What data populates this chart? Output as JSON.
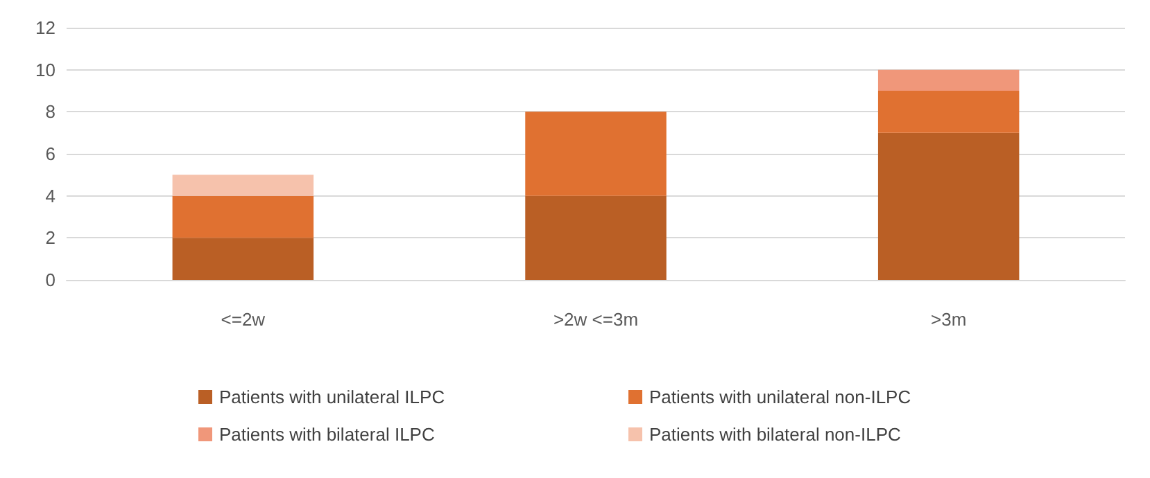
{
  "chart_data": {
    "type": "bar",
    "stacked": true,
    "categories": [
      "<=2w",
      ">2w <=3m",
      ">3m"
    ],
    "series": [
      {
        "name": "Patients with unilateral ILPC",
        "color": "#ba5f25",
        "values": [
          2,
          4,
          7
        ]
      },
      {
        "name": "Patients with unilateral non-ILPC",
        "color": "#e07131",
        "values": [
          2,
          4,
          2
        ]
      },
      {
        "name": "Patients with bilateral ILPC",
        "color": "#f0977a",
        "values": [
          0,
          0,
          1
        ]
      },
      {
        "name": "Patients with bilateral non-ILPC",
        "color": "#f6c2ac",
        "values": [
          1,
          0,
          0
        ]
      }
    ],
    "ylim": [
      0,
      12
    ],
    "yticks": [
      0,
      2,
      4,
      6,
      8,
      10,
      12
    ],
    "grid": "y",
    "legend": "bottom"
  }
}
